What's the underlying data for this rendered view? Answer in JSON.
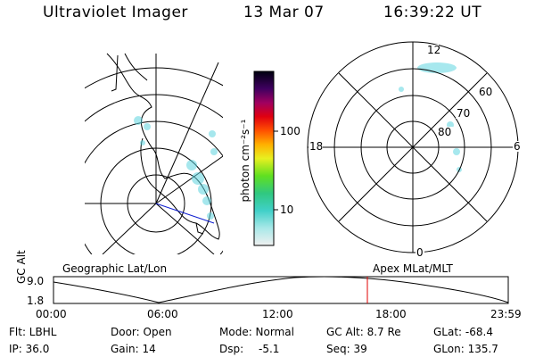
{
  "header": {
    "title": "Ultraviolet Imager",
    "date": "13 Mar 07",
    "time": "16:39:22 UT"
  },
  "colorbar": {
    "unit_label": "photon cm⁻²s⁻¹",
    "tick_100": "100",
    "tick_10": "10"
  },
  "polar_plot": {
    "label_top": "12",
    "label_bottom": "0",
    "label_left": "18",
    "label_right": "6",
    "ring_60": "60",
    "ring_70": "70",
    "ring_80": "80"
  },
  "orbit": {
    "left_label": "Geographic Lat/Lon",
    "right_label": "Apex MLat/MLT",
    "y_axis": "GC Alt",
    "y_top": "9.0",
    "y_bottom": "1.8",
    "times": [
      "00:00",
      "06:00",
      "12:00",
      "18:00",
      "23:59"
    ]
  },
  "info": {
    "flt": "Flt: LBHL",
    "ip": "IP: 36.0",
    "door": "Door: Open",
    "gain": "Gain: 14",
    "mode": "Mode: Normal",
    "dsp_label": "Dsp:",
    "dsp_value": "-5.1",
    "gc_alt": "GC Alt: 8.7 Re",
    "seq": "Seq: 39",
    "glat": "GLat: -68.4",
    "glon": "GLon: 135.7"
  },
  "colors": {
    "aurora": "#5fd5e0",
    "marker": "#e00000",
    "trace": "#1020d0"
  }
}
